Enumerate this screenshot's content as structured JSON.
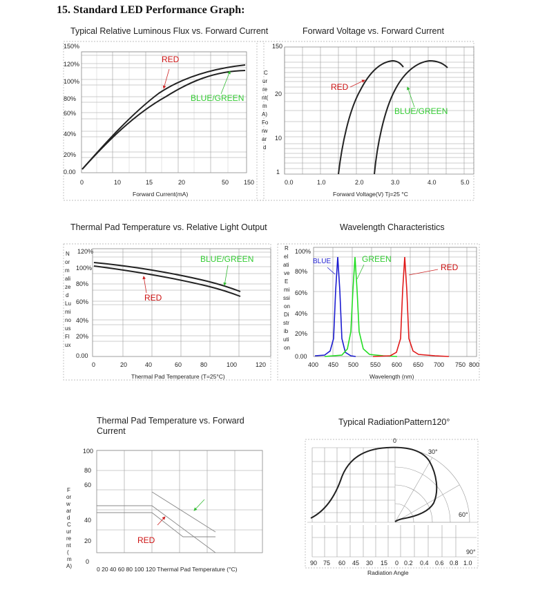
{
  "section": {
    "title": "15. Standard LED Performance Graph:"
  },
  "charts": {
    "flux": {
      "title": "Typical Relative Luminous Flux vs. Forward Current",
      "y_ticks": [
        "150%",
        "120%",
        "100%",
        "80%",
        "60%",
        "40%",
        "20%",
        "0.00"
      ],
      "x_ticks": [
        "0",
        "10",
        "15",
        "20",
        "50",
        "150"
      ],
      "xlabel": "Forward Current(mA)",
      "labels": {
        "red": "RED",
        "bg": "BLUE/GREEN"
      }
    },
    "voltage": {
      "title": "Forward Voltage vs. Forward Current",
      "y_ticks": [
        "150",
        "20",
        "10",
        "1"
      ],
      "x_ticks": [
        "0.0",
        "1.0",
        "2.0",
        "3.0",
        "4.0",
        "5.0"
      ],
      "ylabel_chars": [
        "C",
        "ur",
        "re",
        "nt(",
        "m",
        "A)",
        "Fo",
        "rw",
        "ar",
        "d"
      ],
      "xlabel": "Forward Voltage(V) Tj=25 °C",
      "labels": {
        "red": "RED",
        "bg": "BLUE/GREEN"
      }
    },
    "thermal_light": {
      "title": "Thermal Pad Temperature vs. Relative Light Output",
      "y_ticks": [
        "120%",
        "100%",
        "80%",
        "60%",
        "40%",
        "20%",
        "0.00"
      ],
      "x_ticks": [
        "0",
        "20",
        "40",
        "60",
        "80",
        "100",
        "120"
      ],
      "ylabel_chars": [
        "N",
        "or",
        "m",
        "ali",
        "ze",
        "d",
        "Lu",
        "mi",
        "no",
        "us",
        "Fl",
        "ux"
      ],
      "xlabel": "Thermal Pad Temperature (T=25°C)",
      "labels": {
        "red": "RED",
        "bg": "BLUE/GREEN"
      }
    },
    "wavelength": {
      "title": "Wavelength Characteristics",
      "y_ticks": [
        "100%",
        "80%",
        "60%",
        "40%",
        "20%",
        "0.00"
      ],
      "x_ticks": [
        "400",
        "450",
        "500",
        "550",
        "600",
        "650",
        "700",
        "750",
        "800"
      ],
      "ylabel_chars": [
        "R",
        "el",
        "ati",
        "ve",
        "E",
        "mi",
        "ssi",
        "on",
        "Di",
        "str",
        "ib",
        "uti",
        "on"
      ],
      "xlabel": "Wavelength (nm)",
      "labels": {
        "blue": "BLUE",
        "green": "GREEN",
        "red": "RED"
      },
      "colors": {
        "blue": "#1a1ad0",
        "green": "#22dd22",
        "red": "#e01818"
      }
    },
    "thermal_current": {
      "title": "Thermal Pad Temperature vs. Forward Current",
      "y_ticks": [
        "100",
        "80",
        "60",
        "40",
        "20",
        "0"
      ],
      "x_ticks_text": "0 20 40 60 80 100 120 Thermal Pad Temperature (°C)",
      "ylabel_chars": [
        "F",
        "or",
        "w",
        "ar",
        "d",
        "C",
        "ur",
        "re",
        "nt",
        "(",
        "m",
        "A)"
      ],
      "labels": {
        "red": "RED"
      }
    },
    "radiation": {
      "title": "Typical RadiationPattern120°",
      "angle_labels": [
        "0",
        "30°",
        "60°",
        "90°"
      ],
      "x_ticks": [
        "90",
        "75",
        "60",
        "45",
        "30",
        "15",
        "0",
        "0.2",
        "0.4",
        "0.6",
        "0.8",
        "1.0"
      ],
      "xlabel": "Radiation Angle"
    }
  },
  "accent_colors": {
    "red_label": "#cc1111",
    "green_label": "#33cc33",
    "arrow_red": "#cc2222",
    "arrow_green": "#33bb33"
  }
}
